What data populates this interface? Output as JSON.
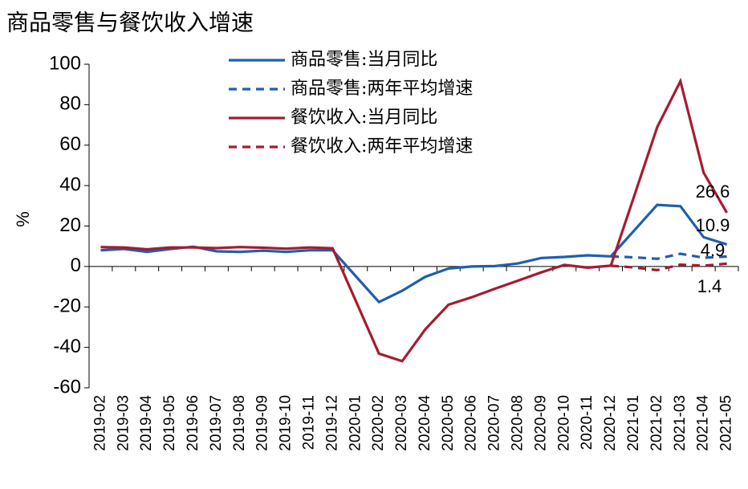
{
  "chart_data": {
    "type": "line",
    "title": "商品零售与餐饮收入增速",
    "y_label": "%",
    "categories": [
      "2019-02",
      "2019-03",
      "2019-04",
      "2019-05",
      "2019-06",
      "2019-07",
      "2019-08",
      "2019-09",
      "2019-10",
      "2019-11",
      "2019-12",
      "2020-01",
      "2020-02",
      "2020-03",
      "2020-04",
      "2020-05",
      "2020-06",
      "2020-07",
      "2020-08",
      "2020-09",
      "2020-10",
      "2020-11",
      "2020-12",
      "2021-01",
      "2021-02",
      "2021-03",
      "2021-04",
      "2021-05"
    ],
    "series": [
      {
        "name": "商品零售:当月同比",
        "color": "#1f5fad",
        "dashed": false,
        "values": [
          8.0,
          8.7,
          7.2,
          8.6,
          9.8,
          7.5,
          7.2,
          7.8,
          7.2,
          8.0,
          8.0,
          -4.8,
          -17.6,
          -12.0,
          -5.1,
          -1.0,
          0.0,
          0.2,
          1.5,
          4.2,
          4.7,
          5.5,
          5.0,
          17.7,
          30.5,
          29.8,
          14.5,
          10.9
        ]
      },
      {
        "name": "商品零售:两年平均增速",
        "color": "#1f5fad",
        "dashed": true,
        "values": [
          null,
          null,
          null,
          null,
          null,
          null,
          null,
          null,
          null,
          null,
          null,
          null,
          null,
          null,
          null,
          null,
          null,
          null,
          null,
          null,
          null,
          null,
          5.0,
          4.5,
          3.8,
          6.3,
          4.3,
          4.9
        ]
      },
      {
        "name": "餐饮收入:当月同比",
        "color": "#a51c30",
        "dashed": false,
        "values": [
          9.6,
          9.4,
          8.5,
          9.4,
          9.4,
          9.1,
          9.6,
          9.3,
          8.8,
          9.4,
          9.0,
          -17.0,
          -43.1,
          -46.8,
          -31.1,
          -18.9,
          -15.2,
          -11.0,
          -7.0,
          -2.9,
          0.8,
          -0.6,
          0.4,
          34.6,
          68.9,
          91.6,
          46.4,
          26.6
        ]
      },
      {
        "name": "餐饮收入:两年平均增速",
        "color": "#a51c30",
        "dashed": true,
        "values": [
          null,
          null,
          null,
          null,
          null,
          null,
          null,
          null,
          null,
          null,
          null,
          null,
          null,
          null,
          null,
          null,
          null,
          null,
          null,
          null,
          null,
          null,
          0.4,
          -0.5,
          -1.8,
          0.9,
          0.4,
          1.4
        ]
      }
    ],
    "ylim": [
      -60,
      100
    ],
    "yticks": [
      -60,
      -40,
      -20,
      0,
      20,
      40,
      60,
      80,
      100
    ],
    "grid": false
  }
}
